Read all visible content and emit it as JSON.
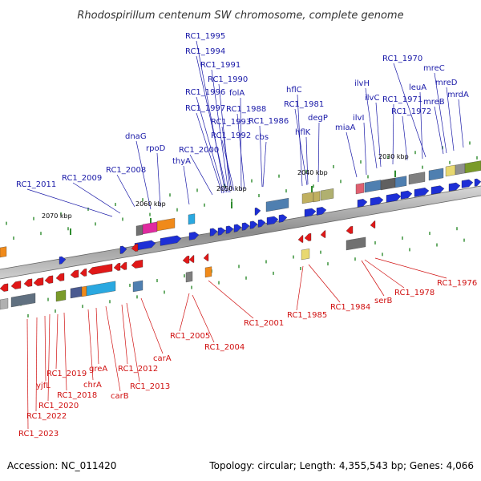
{
  "title": "Rhodospirillum centenum SW chromosome, complete genome",
  "footer": {
    "accession": "Accession: NC_011420",
    "summary": "Topology: circular; Length: 4,355,543 bp; Genes: 4,066"
  },
  "colors": {
    "forward_label": "#1a1aa8",
    "reverse_label": "#d01010",
    "forward_gene": "#1d2fd6",
    "reverse_gene": "#e01818",
    "backbone": "#8a8a8a",
    "tick": "#2e8b2e"
  },
  "ticks": [
    "2070 kbp",
    "2060 kbp",
    "2050 kbp",
    "2040 kbp",
    "2030 kbp"
  ],
  "forward_labels": [
    "RC1_1995",
    "RC1_1994",
    "RC1_1991",
    "RC1_1990",
    "RC1_1996",
    "folA",
    "RC1_1997",
    "RC1_1988",
    "RC1_1993",
    "RC1_1986",
    "RC1_1992",
    "cbs",
    "RC1_2000",
    "dnaG",
    "rpoD",
    "thyA",
    "RC1_2008",
    "RC1_2009",
    "RC1_2011",
    "hflC",
    "RC1_1981",
    "hflK",
    "degP",
    "miaA",
    "ilvI",
    "ilvH",
    "ilvC",
    "RC1_1971",
    "RC1_1972",
    "leuA",
    "RC1_1970",
    "mreC",
    "mreD",
    "mreB",
    "mrdA"
  ],
  "reverse_labels": [
    "RC1_1976",
    "RC1_1978",
    "serB",
    "RC1_1984",
    "RC1_1985",
    "RC1_2001",
    "RC1_2004",
    "RC1_2005",
    "carA",
    "RC1_2013",
    "RC1_2012",
    "carB",
    "chrA",
    "greA",
    "RC1_2019",
    "RC1_2018",
    "RC1_2020",
    "yjfL",
    "RC1_2022",
    "RC1_2023"
  ]
}
